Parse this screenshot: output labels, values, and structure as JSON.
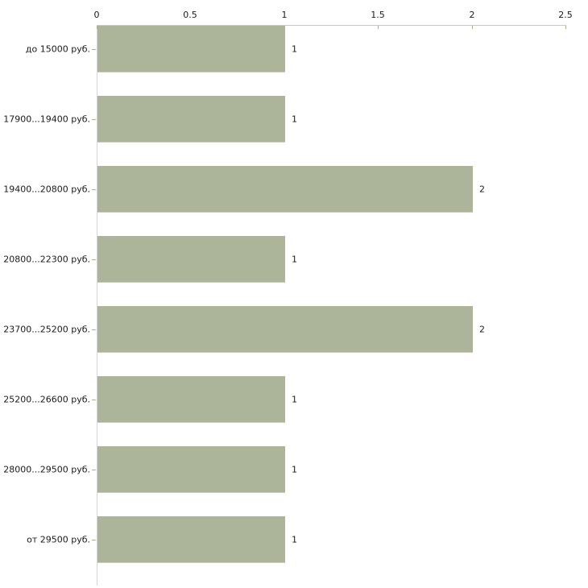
{
  "chart_data": {
    "type": "bar",
    "orientation": "horizontal",
    "title": "",
    "xlabel": "",
    "ylabel": "",
    "categories": [
      "до 15000 руб.",
      "17900...19400 руб.",
      "19400...20800 руб.",
      "20800...22300 руб.",
      "23700...25200 руб.",
      "25200...26600 руб.",
      "28000...29500 руб.",
      "от 29500 руб."
    ],
    "values": [
      1,
      1,
      2,
      1,
      2,
      1,
      1,
      1
    ],
    "x_ticks": [
      "0",
      "0.5",
      "1",
      "1.5",
      "2",
      "2.5"
    ],
    "x_tick_values": [
      0,
      0.5,
      1,
      1.5,
      2,
      2.5
    ],
    "xlim": [
      0,
      2.5
    ],
    "grid": false,
    "legend": false,
    "axis_position": "top",
    "bar_color": "#acb49a",
    "bar_edge_color": "#c9cfba",
    "axis_line_color": "#c9c9c9",
    "tick_color": "#b2ae8e",
    "text_color": "#1a1a1a",
    "background": "#ffffff"
  }
}
